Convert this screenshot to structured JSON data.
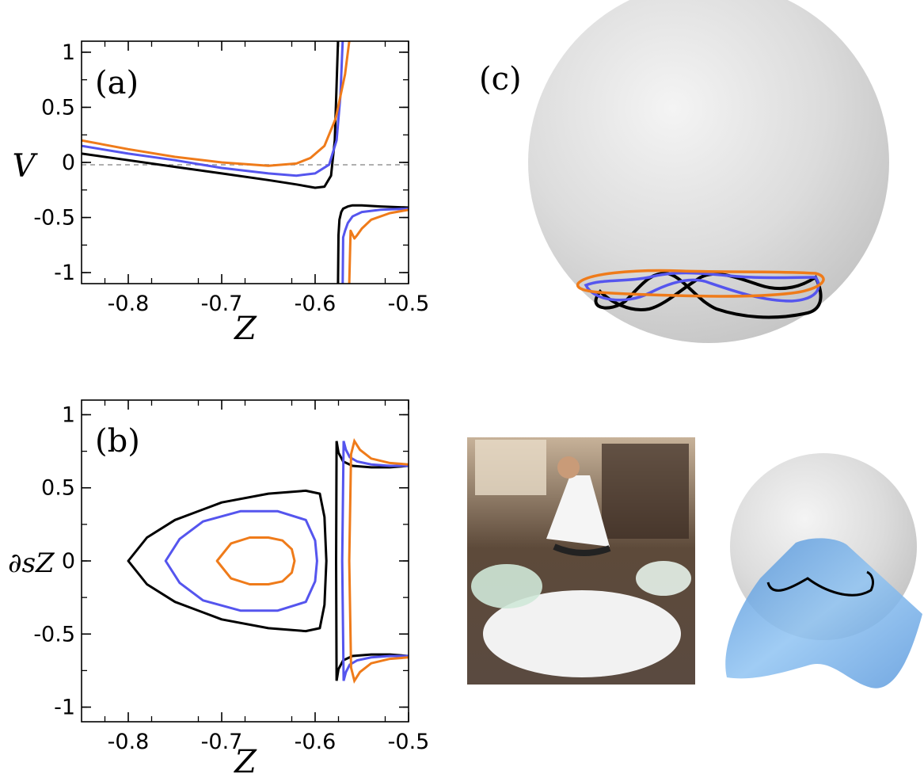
{
  "panels": {
    "a": "(a)",
    "b": "(b)",
    "c": "(c)"
  },
  "colors": {
    "black": "#000000",
    "blue": "#5555ee",
    "orange": "#ef7b1a",
    "zero_line": "#b0b0b0",
    "sphere": "#d9d9d9",
    "surface": "#6aa8e6"
  },
  "chart_data": [
    {
      "type": "line",
      "panel": "a",
      "xlabel": "Z",
      "ylabel": "V",
      "xlim": [
        -0.85,
        -0.5
      ],
      "ylim": [
        -1.1,
        1.1
      ],
      "xticks": [
        "-0.8",
        "-0.7",
        "-0.6",
        "-0.5"
      ],
      "yticks": [
        "1",
        "0.5",
        "0",
        "-0.5",
        "-1"
      ],
      "zero_line": true,
      "series": [
        {
          "color": "black",
          "x": [
            -0.85,
            -0.8,
            -0.75,
            -0.7,
            -0.65,
            -0.62,
            -0.6,
            -0.59,
            -0.583,
            -0.579,
            -0.577,
            -0.5755
          ],
          "y": [
            0.08,
            0.02,
            -0.04,
            -0.1,
            -0.16,
            -0.2,
            -0.23,
            -0.22,
            -0.12,
            0.2,
            0.7,
            1.1
          ],
          "x2": [
            -0.5755,
            -0.575,
            -0.574,
            -0.572,
            -0.57,
            -0.565,
            -0.56,
            -0.55,
            -0.53,
            -0.5
          ],
          "y2": [
            -1.1,
            -0.66,
            -0.52,
            -0.45,
            -0.42,
            -0.4,
            -0.39,
            -0.39,
            -0.4,
            -0.41
          ]
        },
        {
          "color": "blue",
          "x": [
            -0.85,
            -0.8,
            -0.75,
            -0.7,
            -0.65,
            -0.62,
            -0.6,
            -0.585,
            -0.577,
            -0.573,
            -0.5705
          ],
          "y": [
            0.15,
            0.08,
            0.02,
            -0.05,
            -0.1,
            -0.12,
            -0.1,
            -0.02,
            0.2,
            0.6,
            1.1
          ],
          "x2": [
            -0.5705,
            -0.57,
            -0.568,
            -0.565,
            -0.56,
            -0.55,
            -0.53,
            -0.5
          ],
          "y2": [
            -1.1,
            -0.68,
            -0.62,
            -0.55,
            -0.49,
            -0.45,
            -0.43,
            -0.42
          ]
        },
        {
          "color": "orange",
          "x": [
            -0.85,
            -0.8,
            -0.75,
            -0.7,
            -0.65,
            -0.62,
            -0.605,
            -0.59,
            -0.578,
            -0.568,
            -0.5635
          ],
          "y": [
            0.2,
            0.12,
            0.05,
            0.0,
            -0.03,
            -0.01,
            0.04,
            0.15,
            0.4,
            0.8,
            1.1
          ],
          "x2": [
            -0.5635,
            -0.562,
            -0.558,
            -0.555,
            -0.55,
            -0.54,
            -0.52,
            -0.5
          ],
          "y2": [
            -1.1,
            -0.62,
            -0.69,
            -0.66,
            -0.6,
            -0.52,
            -0.46,
            -0.43
          ]
        }
      ]
    },
    {
      "type": "line",
      "panel": "b",
      "xlabel": "Z",
      "ylabel": "∂sZ",
      "xlim": [
        -0.85,
        -0.5
      ],
      "ylim": [
        -1.1,
        1.1
      ],
      "xticks": [
        "-0.8",
        "-0.7",
        "-0.6",
        "-0.5"
      ],
      "yticks": [
        "1",
        "0.5",
        "0",
        "-0.5",
        "-1"
      ],
      "series": [
        {
          "color": "black",
          "loop": {
            "x": [
              -0.8,
              -0.78,
              -0.75,
              -0.7,
              -0.65,
              -0.61,
              -0.595,
              -0.59,
              -0.588
            ],
            "ytop": [
              0.0,
              0.16,
              0.28,
              0.4,
              0.46,
              0.48,
              0.46,
              0.3,
              0.0
            ]
          },
          "spike": {
            "x": [
              -0.5775,
              -0.577,
              -0.575,
              -0.57,
              -0.56,
              -0.54,
              -0.52,
              -0.5
            ],
            "ytop": [
              0.0,
              0.82,
              0.74,
              0.68,
              0.65,
              0.64,
              0.64,
              0.65
            ]
          }
        },
        {
          "color": "blue",
          "loop": {
            "x": [
              -0.76,
              -0.745,
              -0.72,
              -0.68,
              -0.64,
              -0.61,
              -0.6,
              -0.598
            ],
            "ytop": [
              0.0,
              0.15,
              0.27,
              0.34,
              0.34,
              0.28,
              0.14,
              0.0
            ]
          },
          "spike": {
            "x": [
              -0.571,
              -0.5695,
              -0.567,
              -0.563,
              -0.555,
              -0.54,
              -0.52,
              -0.5
            ],
            "ytop": [
              0.0,
              0.82,
              0.76,
              0.71,
              0.68,
              0.66,
              0.65,
              0.65
            ]
          }
        },
        {
          "color": "orange",
          "loop": {
            "x": [
              -0.705,
              -0.69,
              -0.67,
              -0.65,
              -0.635,
              -0.625,
              -0.622
            ],
            "ytop": [
              0.0,
              0.12,
              0.16,
              0.16,
              0.14,
              0.08,
              0.0
            ]
          },
          "spike": {
            "x": [
              -0.5635,
              -0.5615,
              -0.558,
              -0.552,
              -0.54,
              -0.52,
              -0.5
            ],
            "ytop": [
              0.0,
              0.73,
              0.82,
              0.76,
              0.7,
              0.67,
              0.66
            ]
          }
        }
      ]
    }
  ]
}
